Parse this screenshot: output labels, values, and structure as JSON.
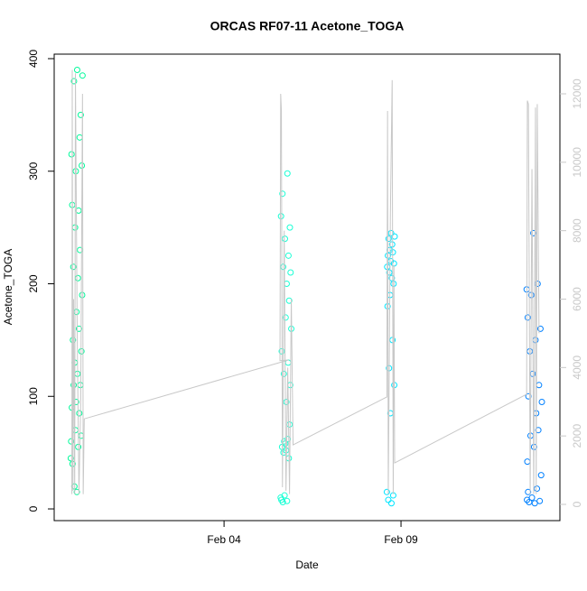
{
  "chart_data": {
    "type": "scatter",
    "title": "ORCAS RF07-11 Acetone_TOGA",
    "x_label": "Date",
    "y_label": "Acetone_TOGA",
    "xlim": [
      -0.8,
      13.49
    ],
    "xticks": [
      {
        "value": 4,
        "label": "Feb 04"
      },
      {
        "value": 9,
        "label": "Feb 09"
      }
    ],
    "ylim": [
      -10.4,
      404
    ],
    "yticks": [
      0,
      100,
      200,
      300,
      400
    ],
    "y2lim": [
      -475,
      13160
    ],
    "y2ticks": [
      0,
      2000,
      4000,
      6000,
      8000,
      10000,
      12000
    ],
    "series": [
      {
        "color": "#00fa9a",
        "x": [
          -0.33,
          -0.32,
          -0.31,
          -0.3,
          -0.29,
          -0.28,
          -0.27,
          -0.26,
          -0.25,
          -0.24,
          -0.23,
          -0.22,
          -0.21,
          -0.2,
          -0.19,
          -0.18,
          -0.17,
          -0.16,
          -0.15,
          -0.14,
          -0.13,
          -0.12,
          -0.11,
          -0.1,
          -0.09,
          -0.08,
          -0.07,
          -0.06,
          -0.05,
          -0.04,
          -0.03,
          -0.02,
          -0.01,
          0.0
        ],
        "values": [
          45,
          60,
          315,
          90,
          270,
          40,
          150,
          215,
          110,
          380,
          20,
          130,
          250,
          70,
          300,
          95,
          175,
          15,
          390,
          120,
          205,
          55,
          265,
          160,
          85,
          330,
          230,
          110,
          350,
          65,
          140,
          305,
          190,
          385
        ]
      },
      {
        "color": "#1affd5",
        "x": [
          5.6,
          5.61,
          5.62,
          5.63,
          5.64,
          5.65,
          5.66,
          5.67,
          5.68,
          5.69,
          5.7,
          5.71,
          5.72,
          5.73,
          5.74,
          5.75,
          5.76,
          5.77,
          5.78,
          5.79,
          5.8,
          5.81,
          5.82,
          5.83,
          5.84,
          5.85,
          5.86,
          5.87,
          5.88,
          5.9
        ],
        "values": [
          10,
          260,
          8,
          140,
          55,
          280,
          6,
          215,
          50,
          120,
          60,
          12,
          240,
          58,
          170,
          52,
          95,
          200,
          7,
          298,
          62,
          130,
          225,
          45,
          185,
          75,
          250,
          110,
          210,
          160
        ]
      },
      {
        "color": "#00e5ff",
        "x": [
          8.6,
          8.61,
          8.62,
          8.63,
          8.64,
          8.65,
          8.66,
          8.67,
          8.68,
          8.69,
          8.7,
          8.71,
          8.72,
          8.73,
          8.74,
          8.75,
          8.76,
          8.77,
          8.78,
          8.79,
          8.8,
          8.81,
          8.82
        ],
        "values": [
          15,
          215,
          180,
          225,
          8,
          240,
          125,
          210,
          230,
          190,
          85,
          220,
          245,
          5,
          205,
          235,
          150,
          228,
          12,
          200,
          218,
          110,
          242
        ]
      },
      {
        "color": "#0080ff",
        "x": [
          12.55,
          12.56,
          12.57,
          12.58,
          12.59,
          12.6,
          12.62,
          12.64,
          12.66,
          12.68,
          12.7,
          12.72,
          12.74,
          12.76,
          12.78,
          12.8,
          12.82,
          12.84,
          12.86,
          12.88,
          12.9,
          12.92,
          12.94,
          12.96,
          12.98
        ],
        "values": [
          195,
          8,
          42,
          170,
          15,
          100,
          6,
          140,
          65,
          190,
          10,
          120,
          245,
          55,
          5,
          150,
          85,
          18,
          200,
          70,
          110,
          7,
          160,
          30,
          95
        ]
      },
      {
        "axis": "y2",
        "color": "#c8c8c8",
        "x": [
          -0.3,
          -0.29,
          -0.27,
          -0.25,
          -0.22,
          -0.2,
          -0.15,
          -0.1,
          -0.05,
          0.0,
          0.02,
          0.05,
          5.82,
          5.58,
          5.6,
          5.62,
          5.65,
          5.7,
          5.75,
          5.8,
          5.85,
          5.9,
          5.95,
          8.6,
          8.62,
          8.64,
          8.7,
          8.75,
          8.78,
          8.8,
          8.82,
          12.55,
          12.57,
          12.6,
          12.65,
          12.7,
          12.75,
          12.8,
          12.82,
          12.85,
          12.9
        ],
        "values": [
          300,
          12700,
          400,
          6000,
          300,
          12600,
          5000,
          300,
          3000,
          12000,
          300,
          2500,
          4220,
          4200,
          12000,
          11500,
          500,
          8000,
          400,
          4000,
          300,
          6000,
          1740,
          3140,
          11500,
          300,
          8500,
          12400,
          300,
          7000,
          1210,
          3220,
          11800,
          11700,
          300,
          9800,
          300,
          11600,
          300,
          11700,
          5000
        ]
      }
    ]
  }
}
